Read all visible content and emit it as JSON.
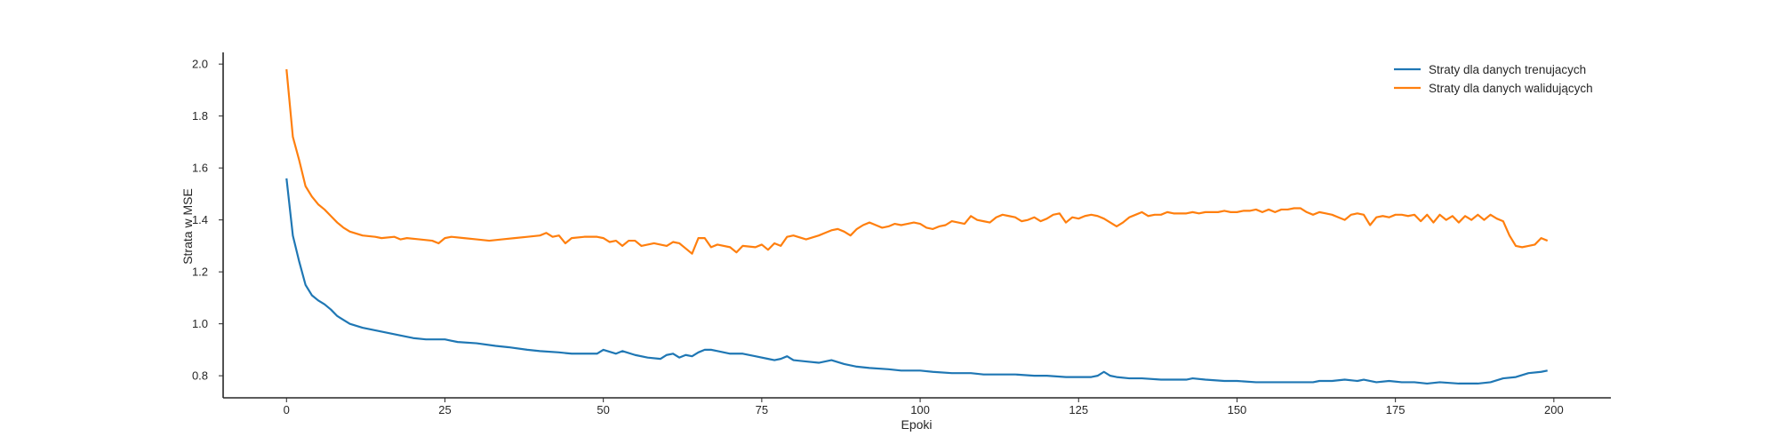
{
  "chart_data": {
    "type": "line",
    "xlabel": "Epoki",
    "ylabel": "Strata w MSE",
    "xlim": [
      -10,
      209
    ],
    "ylim": [
      0.715,
      2.045
    ],
    "xticks": [
      0,
      25,
      50,
      75,
      100,
      125,
      150,
      175,
      200
    ],
    "yticks": [
      0.8,
      1.0,
      1.2,
      1.4,
      1.6,
      1.8,
      2.0
    ],
    "ytick_labels": [
      "0.8",
      "1.0",
      "1.2",
      "1.4",
      "1.6",
      "1.8",
      "2.0"
    ],
    "grid": false,
    "legend_position": "top-right",
    "series": [
      {
        "name": "Straty dla danych trenujacych",
        "color": "#1f77b4",
        "points": [
          [
            0,
            1.56
          ],
          [
            1,
            1.34
          ],
          [
            2,
            1.24
          ],
          [
            3,
            1.15
          ],
          [
            4,
            1.11
          ],
          [
            5,
            1.09
          ],
          [
            6,
            1.075
          ],
          [
            7,
            1.055
          ],
          [
            8,
            1.03
          ],
          [
            9,
            1.015
          ],
          [
            10,
            1.0
          ],
          [
            12,
            0.985
          ],
          [
            15,
            0.97
          ],
          [
            18,
            0.955
          ],
          [
            20,
            0.945
          ],
          [
            22,
            0.94
          ],
          [
            25,
            0.94
          ],
          [
            27,
            0.93
          ],
          [
            30,
            0.925
          ],
          [
            33,
            0.915
          ],
          [
            35,
            0.91
          ],
          [
            38,
            0.9
          ],
          [
            40,
            0.895
          ],
          [
            43,
            0.89
          ],
          [
            45,
            0.885
          ],
          [
            47,
            0.885
          ],
          [
            49,
            0.885
          ],
          [
            50,
            0.9
          ],
          [
            52,
            0.885
          ],
          [
            53,
            0.895
          ],
          [
            55,
            0.88
          ],
          [
            57,
            0.87
          ],
          [
            59,
            0.865
          ],
          [
            60,
            0.88
          ],
          [
            61,
            0.885
          ],
          [
            62,
            0.87
          ],
          [
            63,
            0.88
          ],
          [
            64,
            0.875
          ],
          [
            65,
            0.89
          ],
          [
            66,
            0.9
          ],
          [
            67,
            0.9
          ],
          [
            68,
            0.895
          ],
          [
            70,
            0.885
          ],
          [
            72,
            0.885
          ],
          [
            74,
            0.875
          ],
          [
            76,
            0.865
          ],
          [
            77,
            0.86
          ],
          [
            78,
            0.865
          ],
          [
            79,
            0.875
          ],
          [
            80,
            0.86
          ],
          [
            82,
            0.855
          ],
          [
            84,
            0.85
          ],
          [
            86,
            0.86
          ],
          [
            88,
            0.845
          ],
          [
            90,
            0.835
          ],
          [
            92,
            0.83
          ],
          [
            95,
            0.825
          ],
          [
            97,
            0.82
          ],
          [
            100,
            0.82
          ],
          [
            102,
            0.815
          ],
          [
            105,
            0.81
          ],
          [
            108,
            0.81
          ],
          [
            110,
            0.805
          ],
          [
            113,
            0.805
          ],
          [
            115,
            0.805
          ],
          [
            118,
            0.8
          ],
          [
            120,
            0.8
          ],
          [
            123,
            0.795
          ],
          [
            125,
            0.795
          ],
          [
            127,
            0.795
          ],
          [
            128,
            0.8
          ],
          [
            129,
            0.815
          ],
          [
            130,
            0.8
          ],
          [
            131,
            0.795
          ],
          [
            133,
            0.79
          ],
          [
            135,
            0.79
          ],
          [
            138,
            0.785
          ],
          [
            140,
            0.785
          ],
          [
            142,
            0.785
          ],
          [
            143,
            0.79
          ],
          [
            145,
            0.785
          ],
          [
            148,
            0.78
          ],
          [
            150,
            0.78
          ],
          [
            153,
            0.775
          ],
          [
            155,
            0.775
          ],
          [
            158,
            0.775
          ],
          [
            160,
            0.775
          ],
          [
            162,
            0.775
          ],
          [
            163,
            0.78
          ],
          [
            165,
            0.78
          ],
          [
            167,
            0.785
          ],
          [
            169,
            0.78
          ],
          [
            170,
            0.785
          ],
          [
            172,
            0.775
          ],
          [
            174,
            0.78
          ],
          [
            176,
            0.775
          ],
          [
            178,
            0.775
          ],
          [
            180,
            0.77
          ],
          [
            182,
            0.775
          ],
          [
            185,
            0.77
          ],
          [
            188,
            0.77
          ],
          [
            190,
            0.775
          ],
          [
            192,
            0.79
          ],
          [
            194,
            0.795
          ],
          [
            196,
            0.81
          ],
          [
            198,
            0.815
          ],
          [
            199,
            0.82
          ]
        ]
      },
      {
        "name": "Straty dla danych walidujących",
        "color": "#ff7f0e",
        "points": [
          [
            0,
            1.98
          ],
          [
            1,
            1.72
          ],
          [
            2,
            1.63
          ],
          [
            3,
            1.53
          ],
          [
            4,
            1.49
          ],
          [
            5,
            1.46
          ],
          [
            6,
            1.44
          ],
          [
            7,
            1.415
          ],
          [
            8,
            1.39
          ],
          [
            9,
            1.37
          ],
          [
            10,
            1.355
          ],
          [
            12,
            1.34
          ],
          [
            14,
            1.335
          ],
          [
            15,
            1.33
          ],
          [
            17,
            1.335
          ],
          [
            18,
            1.325
          ],
          [
            19,
            1.33
          ],
          [
            21,
            1.325
          ],
          [
            23,
            1.32
          ],
          [
            24,
            1.31
          ],
          [
            25,
            1.33
          ],
          [
            26,
            1.335
          ],
          [
            28,
            1.33
          ],
          [
            30,
            1.325
          ],
          [
            32,
            1.32
          ],
          [
            34,
            1.325
          ],
          [
            36,
            1.33
          ],
          [
            38,
            1.335
          ],
          [
            40,
            1.34
          ],
          [
            41,
            1.35
          ],
          [
            42,
            1.335
          ],
          [
            43,
            1.34
          ],
          [
            44,
            1.31
          ],
          [
            45,
            1.33
          ],
          [
            47,
            1.335
          ],
          [
            49,
            1.335
          ],
          [
            50,
            1.33
          ],
          [
            51,
            1.315
          ],
          [
            52,
            1.32
          ],
          [
            53,
            1.3
          ],
          [
            54,
            1.32
          ],
          [
            55,
            1.32
          ],
          [
            56,
            1.3
          ],
          [
            58,
            1.31
          ],
          [
            60,
            1.3
          ],
          [
            61,
            1.315
          ],
          [
            62,
            1.31
          ],
          [
            63,
            1.29
          ],
          [
            64,
            1.27
          ],
          [
            65,
            1.33
          ],
          [
            66,
            1.33
          ],
          [
            67,
            1.295
          ],
          [
            68,
            1.305
          ],
          [
            70,
            1.295
          ],
          [
            71,
            1.275
          ],
          [
            72,
            1.3
          ],
          [
            74,
            1.295
          ],
          [
            75,
            1.305
          ],
          [
            76,
            1.285
          ],
          [
            77,
            1.31
          ],
          [
            78,
            1.3
          ],
          [
            79,
            1.335
          ],
          [
            80,
            1.34
          ],
          [
            82,
            1.325
          ],
          [
            84,
            1.34
          ],
          [
            85,
            1.35
          ],
          [
            86,
            1.36
          ],
          [
            87,
            1.365
          ],
          [
            88,
            1.355
          ],
          [
            89,
            1.34
          ],
          [
            90,
            1.365
          ],
          [
            91,
            1.38
          ],
          [
            92,
            1.39
          ],
          [
            93,
            1.38
          ],
          [
            94,
            1.37
          ],
          [
            95,
            1.375
          ],
          [
            96,
            1.385
          ],
          [
            97,
            1.38
          ],
          [
            98,
            1.385
          ],
          [
            99,
            1.39
          ],
          [
            100,
            1.385
          ],
          [
            101,
            1.37
          ],
          [
            102,
            1.365
          ],
          [
            103,
            1.375
          ],
          [
            104,
            1.38
          ],
          [
            105,
            1.395
          ],
          [
            106,
            1.39
          ],
          [
            107,
            1.385
          ],
          [
            108,
            1.415
          ],
          [
            109,
            1.4
          ],
          [
            110,
            1.395
          ],
          [
            111,
            1.39
          ],
          [
            112,
            1.41
          ],
          [
            113,
            1.42
          ],
          [
            114,
            1.415
          ],
          [
            115,
            1.41
          ],
          [
            116,
            1.395
          ],
          [
            117,
            1.4
          ],
          [
            118,
            1.41
          ],
          [
            119,
            1.395
          ],
          [
            120,
            1.405
          ],
          [
            121,
            1.42
          ],
          [
            122,
            1.425
          ],
          [
            123,
            1.39
          ],
          [
            124,
            1.41
          ],
          [
            125,
            1.405
          ],
          [
            126,
            1.415
          ],
          [
            127,
            1.42
          ],
          [
            128,
            1.415
          ],
          [
            129,
            1.405
          ],
          [
            130,
            1.39
          ],
          [
            131,
            1.375
          ],
          [
            132,
            1.39
          ],
          [
            133,
            1.41
          ],
          [
            134,
            1.42
          ],
          [
            135,
            1.43
          ],
          [
            136,
            1.415
          ],
          [
            137,
            1.42
          ],
          [
            138,
            1.42
          ],
          [
            139,
            1.43
          ],
          [
            140,
            1.425
          ],
          [
            141,
            1.425
          ],
          [
            142,
            1.425
          ],
          [
            143,
            1.43
          ],
          [
            144,
            1.425
          ],
          [
            145,
            1.43
          ],
          [
            146,
            1.43
          ],
          [
            147,
            1.43
          ],
          [
            148,
            1.435
          ],
          [
            149,
            1.43
          ],
          [
            150,
            1.43
          ],
          [
            151,
            1.435
          ],
          [
            152,
            1.435
          ],
          [
            153,
            1.44
          ],
          [
            154,
            1.43
          ],
          [
            155,
            1.44
          ],
          [
            156,
            1.43
          ],
          [
            157,
            1.44
          ],
          [
            158,
            1.44
          ],
          [
            159,
            1.445
          ],
          [
            160,
            1.445
          ],
          [
            161,
            1.43
          ],
          [
            162,
            1.42
          ],
          [
            163,
            1.43
          ],
          [
            164,
            1.425
          ],
          [
            165,
            1.42
          ],
          [
            166,
            1.41
          ],
          [
            167,
            1.4
          ],
          [
            168,
            1.42
          ],
          [
            169,
            1.425
          ],
          [
            170,
            1.42
          ],
          [
            171,
            1.38
          ],
          [
            172,
            1.41
          ],
          [
            173,
            1.415
          ],
          [
            174,
            1.41
          ],
          [
            175,
            1.42
          ],
          [
            176,
            1.42
          ],
          [
            177,
            1.415
          ],
          [
            178,
            1.42
          ],
          [
            179,
            1.395
          ],
          [
            180,
            1.42
          ],
          [
            181,
            1.39
          ],
          [
            182,
            1.42
          ],
          [
            183,
            1.4
          ],
          [
            184,
            1.415
          ],
          [
            185,
            1.39
          ],
          [
            186,
            1.415
          ],
          [
            187,
            1.4
          ],
          [
            188,
            1.42
          ],
          [
            189,
            1.4
          ],
          [
            190,
            1.42
          ],
          [
            191,
            1.405
          ],
          [
            192,
            1.395
          ],
          [
            193,
            1.34
          ],
          [
            194,
            1.3
          ],
          [
            195,
            1.295
          ],
          [
            196,
            1.3
          ],
          [
            197,
            1.305
          ],
          [
            198,
            1.33
          ],
          [
            199,
            1.32
          ]
        ]
      }
    ]
  }
}
